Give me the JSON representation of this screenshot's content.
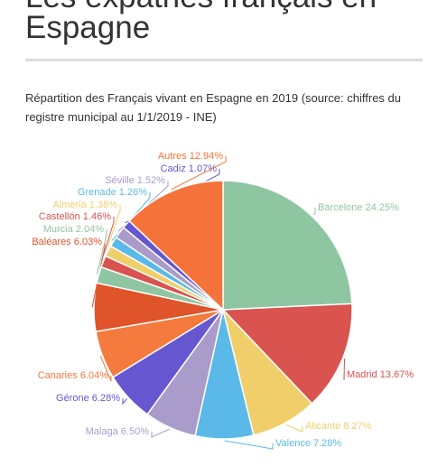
{
  "page_title": "Les expatriés français en Espagne",
  "chart_data": {
    "type": "pie",
    "title": "Répartition des Français vivant en Espagne en 2019 (source: chiffres du registre municipal au 1/1/2019 - INE)",
    "categories": [
      "Barcelone",
      "Madrid",
      "Alicante",
      "Valence",
      "Malaga",
      "Gérone",
      "Canaries",
      "Baléares",
      "Murcia",
      "Castellón",
      "Almeria",
      "Grenade",
      "Séville",
      "Cadiz",
      "Autres"
    ],
    "values": [
      24.25,
      13.67,
      8.27,
      7.28,
      6.5,
      6.28,
      6.04,
      6.03,
      2.04,
      1.46,
      1.38,
      1.26,
      1.52,
      1.07,
      12.94
    ],
    "value_labels": [
      "24.25%",
      "13.67%",
      "8.27%",
      "7.28%",
      "6.50%",
      "6.28%",
      "6.04%",
      "6.03%",
      "2.04%",
      "1.46%",
      "1.38%",
      "1.26%",
      "1.52%",
      "1.07%",
      "12.94%"
    ],
    "colors": [
      "#8fc6a2",
      "#d9534f",
      "#f0cf6b",
      "#5ab9e8",
      "#a99ccb",
      "#6657d1",
      "#f57a3d",
      "#e0542a",
      "#8fc6a2",
      "#d9534f",
      "#f0cf6b",
      "#5ab9e8",
      "#a99ccb",
      "#6657d1",
      "#f5733a"
    ]
  }
}
